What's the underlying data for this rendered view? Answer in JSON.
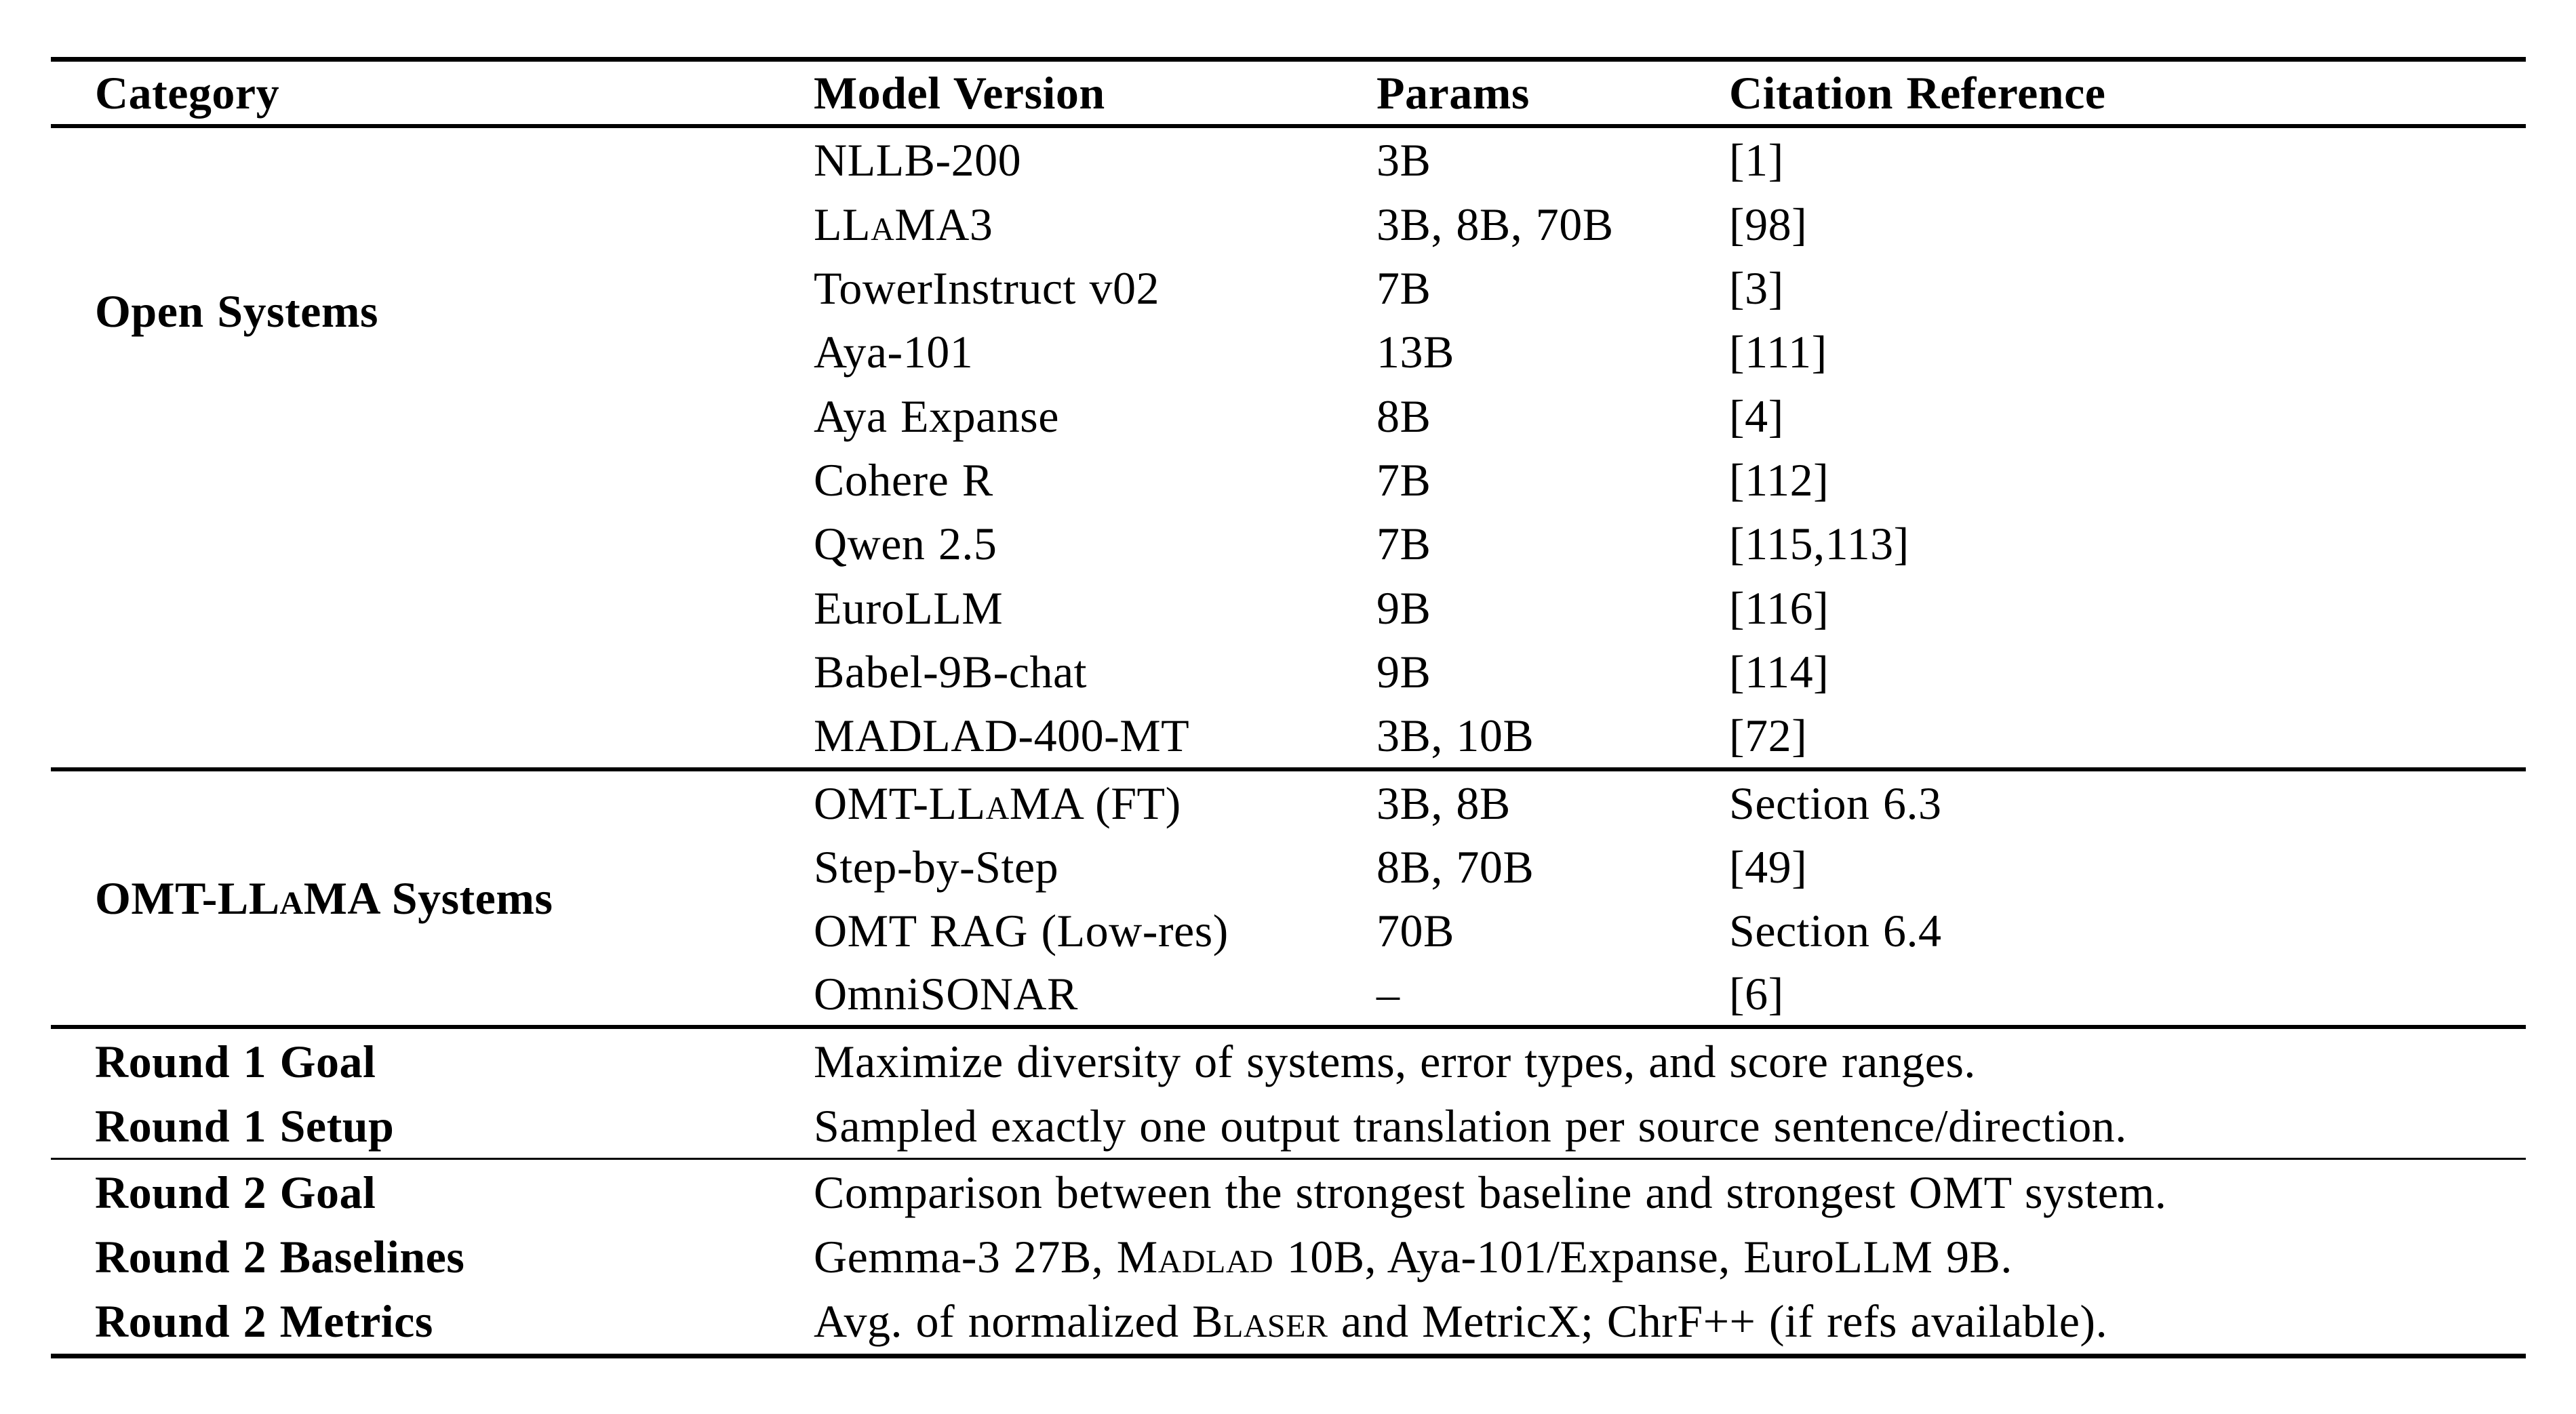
{
  "table": {
    "headers": {
      "category": "Category",
      "model": "Model Version",
      "params": "Params",
      "citation": "Citation Reference"
    },
    "open_systems": {
      "category_label": [
        {
          "t": "Open Systems"
        }
      ],
      "rows": [
        {
          "model": [
            {
              "t": "NLLB-200"
            }
          ],
          "params": "3B",
          "citation": "[1]"
        },
        {
          "model": [
            {
              "t": "LL"
            },
            {
              "t": "a",
              "sc": true
            },
            {
              "t": "MA3"
            }
          ],
          "params": "3B, 8B, 70B",
          "citation": "[98]"
        },
        {
          "model": [
            {
              "t": "TowerInstruct v02"
            }
          ],
          "params": "7B",
          "citation": "[3]"
        },
        {
          "model": [
            {
              "t": "Aya-101"
            }
          ],
          "params": "13B",
          "citation": "[111]"
        },
        {
          "model": [
            {
              "t": "Aya Expanse"
            }
          ],
          "params": "8B",
          "citation": "[4]"
        },
        {
          "model": [
            {
              "t": "Cohere R"
            }
          ],
          "params": "7B",
          "citation": "[112]"
        },
        {
          "model": [
            {
              "t": "Qwen 2.5"
            }
          ],
          "params": "7B",
          "citation": "[115,113]"
        },
        {
          "model": [
            {
              "t": "EuroLLM"
            }
          ],
          "params": "9B",
          "citation": "[116]"
        },
        {
          "model": [
            {
              "t": "Babel-9B-chat"
            }
          ],
          "params": "9B",
          "citation": "[114]"
        },
        {
          "model": [
            {
              "t": "MADLAD-400-MT"
            }
          ],
          "params": "3B, 10B",
          "citation": "[72]"
        }
      ]
    },
    "omt_systems": {
      "category_label": [
        {
          "t": "OMT-LL"
        },
        {
          "t": "a",
          "sc": true
        },
        {
          "t": "MA Systems"
        }
      ],
      "rows": [
        {
          "model": [
            {
              "t": "OMT-LL"
            },
            {
              "t": "a",
              "sc": true
            },
            {
              "t": "MA (FT)"
            }
          ],
          "params": "3B, 8B",
          "citation": "Section 6.3"
        },
        {
          "model": [
            {
              "t": "Step-by-Step"
            }
          ],
          "params": "8B, 70B",
          "citation": "[49]"
        },
        {
          "model": [
            {
              "t": "OMT RAG (Low-res)"
            }
          ],
          "params": "70B",
          "citation": "Section 6.4"
        },
        {
          "model": [
            {
              "t": "OmniSONAR"
            }
          ],
          "params": "–",
          "citation": "[6]"
        }
      ]
    },
    "summary_rows": [
      {
        "label": "Round 1 Goal",
        "value": [
          {
            "t": "Maximize diversity of systems, error types, and score ranges."
          }
        ]
      },
      {
        "label": "Round 1 Setup",
        "value": [
          {
            "t": "Sampled exactly one output translation per source sentence/direction."
          }
        ]
      },
      {
        "label": "Round 2 Goal",
        "value": [
          {
            "t": "Comparison between the strongest baseline and strongest OMT system."
          }
        ]
      },
      {
        "label": "Round 2 Baselines",
        "value": [
          {
            "t": "Gemma-3 27B, M"
          },
          {
            "t": "adlad",
            "sc": true
          },
          {
            "t": " 10B, Aya-101/Expanse, EuroLLM 9B."
          }
        ]
      },
      {
        "label": "Round 2 Metrics",
        "value": [
          {
            "t": "Avg. of normalized B"
          },
          {
            "t": "laser",
            "sc": true
          },
          {
            "t": " and MetricX; ChrF++ (if refs available)."
          }
        ]
      }
    ]
  }
}
